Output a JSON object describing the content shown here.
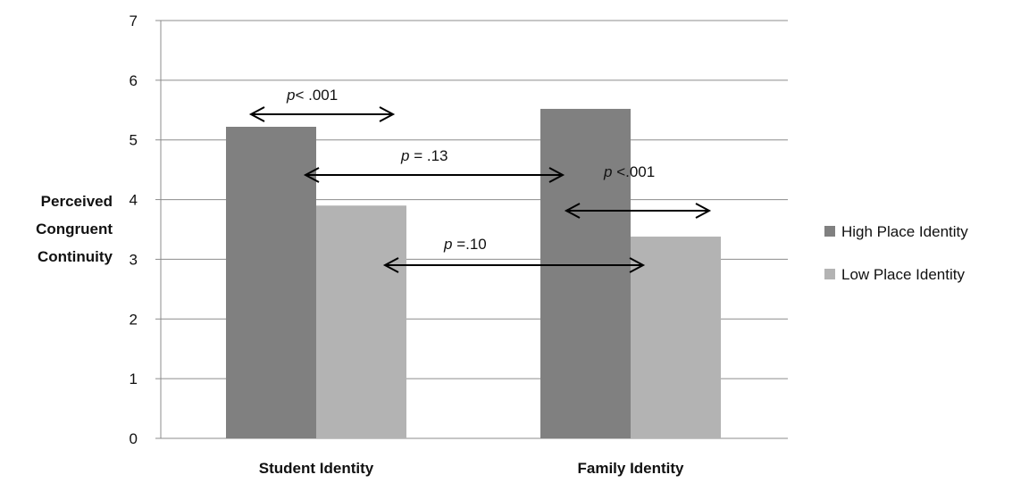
{
  "chart_data": {
    "type": "bar",
    "categories": [
      "Student Identity",
      "Family Identity"
    ],
    "series": [
      {
        "name": "High Place Identity",
        "values": [
          5.22,
          5.52
        ],
        "color": "#808080"
      },
      {
        "name": "Low Place Identity",
        "values": [
          3.9,
          3.38
        ],
        "color": "#b3b3b3"
      }
    ],
    "ylabel_lines": [
      "Perceived",
      "Congruent",
      "Continuity"
    ],
    "ylim": [
      0,
      7
    ],
    "yticks": [
      "0",
      "1",
      "2",
      "3",
      "4",
      "5",
      "6",
      "7"
    ],
    "grid": true,
    "legend_position": "right",
    "annotations": [
      {
        "p": "p",
        "rest": "< .001",
        "from": [
          0,
          0
        ],
        "to": [
          0,
          1
        ]
      },
      {
        "p": "p",
        "rest": " = .13",
        "from": [
          0,
          0
        ],
        "to": [
          1,
          0
        ]
      },
      {
        "p": "p",
        "rest": " <.001",
        "from": [
          1,
          0
        ],
        "to": [
          1,
          1
        ]
      },
      {
        "p": "p",
        "rest": " =.10",
        "from": [
          0,
          1
        ],
        "to": [
          1,
          1
        ]
      }
    ]
  }
}
